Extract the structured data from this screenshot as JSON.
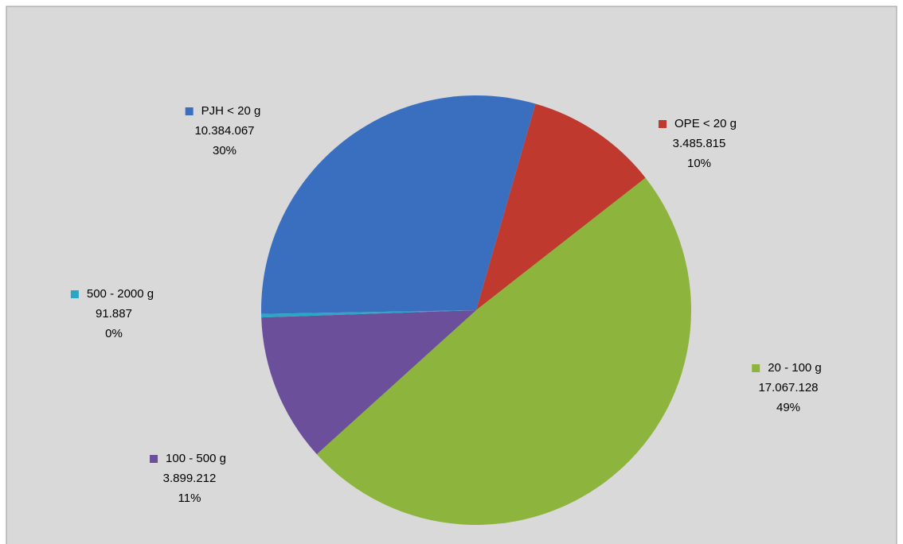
{
  "chart_data": {
    "type": "pie",
    "categories": [
      "PJH < 20 g",
      "OPE < 20 g",
      "20 - 100 g",
      "100 - 500 g",
      "500 - 2000 g"
    ],
    "values": [
      10384067,
      3485815,
      17067128,
      3899212,
      91887
    ],
    "value_labels": [
      "10.384.067",
      "3.485.815",
      "17.067.128",
      "3.899.212",
      "91.887"
    ],
    "percent_labels": [
      "30%",
      "10%",
      "49%",
      "11%",
      "0%"
    ],
    "colors": [
      "#3a6fbf",
      "#c0392f",
      "#8db43c",
      "#6b4f9a",
      "#2aa6c6"
    ]
  }
}
